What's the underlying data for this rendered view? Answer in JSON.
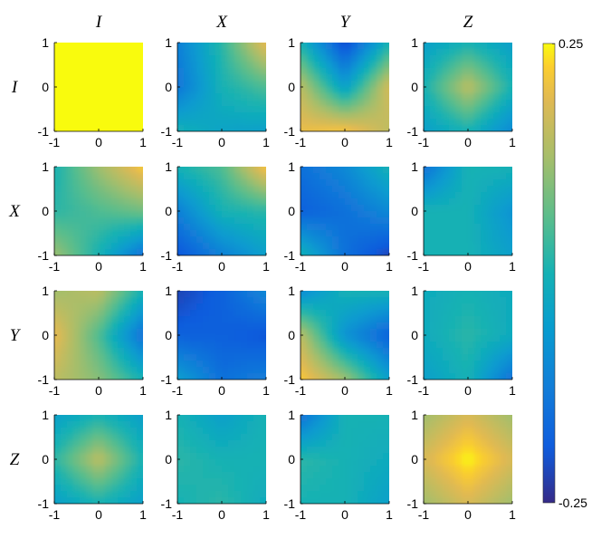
{
  "chart_data": {
    "type": "heatmap",
    "layout": "4x4 grid of subplots",
    "colormap": "parula",
    "column_labels": [
      "I",
      "X",
      "Y",
      "Z"
    ],
    "row_labels": [
      "I",
      "X",
      "Y",
      "Z"
    ],
    "axis_range": {
      "x": [
        -1,
        1
      ],
      "y": [
        -1,
        1
      ]
    },
    "x_ticks": [
      "-1",
      "0",
      "1"
    ],
    "y_ticks": [
      "1",
      "0",
      "-1"
    ],
    "colorbar": {
      "min": -0.25,
      "max": 0.25,
      "min_label": "-0.25",
      "max_label": "0.25"
    },
    "grid": false,
    "panels": [
      {
        "row": "I",
        "col": "I",
        "approx_field": [
          [
            0.25,
            0.25,
            0.25
          ],
          [
            0.25,
            0.25,
            0.25
          ],
          [
            0.25,
            0.25,
            0.25
          ]
        ]
      },
      {
        "row": "I",
        "col": "X",
        "approx_field": [
          [
            -0.12,
            0.02,
            0.2
          ],
          [
            -0.14,
            0.0,
            0.05
          ],
          [
            0.0,
            -0.04,
            -0.05
          ]
        ]
      },
      {
        "row": "I",
        "col": "Y",
        "approx_field": [
          [
            0.0,
            -0.22,
            0.0
          ],
          [
            0.15,
            -0.05,
            0.18
          ],
          [
            0.2,
            0.22,
            0.15
          ]
        ]
      },
      {
        "row": "I",
        "col": "Z",
        "approx_field": [
          [
            -0.05,
            0.0,
            -0.05
          ],
          [
            0.0,
            0.15,
            0.0
          ],
          [
            -0.05,
            0.0,
            -0.1
          ]
        ]
      },
      {
        "row": "X",
        "col": "I",
        "approx_field": [
          [
            0.0,
            0.12,
            0.22
          ],
          [
            0.02,
            0.05,
            0.08
          ],
          [
            0.12,
            0.0,
            -0.15
          ]
        ]
      },
      {
        "row": "X",
        "col": "X",
        "approx_field": [
          [
            0.0,
            0.05,
            0.22
          ],
          [
            -0.12,
            0.0,
            0.02
          ],
          [
            -0.2,
            -0.12,
            -0.05
          ]
        ]
      },
      {
        "row": "X",
        "col": "Y",
        "approx_field": [
          [
            -0.15,
            -0.1,
            0.0
          ],
          [
            -0.18,
            -0.15,
            -0.1
          ],
          [
            0.0,
            -0.15,
            -0.22
          ]
        ]
      },
      {
        "row": "X",
        "col": "Z",
        "approx_field": [
          [
            -0.15,
            0.0,
            0.0
          ],
          [
            0.0,
            0.0,
            -0.08
          ],
          [
            0.0,
            0.0,
            -0.05
          ]
        ]
      },
      {
        "row": "Y",
        "col": "I",
        "approx_field": [
          [
            0.12,
            0.15,
            0.0
          ],
          [
            0.2,
            0.05,
            -0.15
          ],
          [
            0.15,
            0.1,
            0.0
          ]
        ]
      },
      {
        "row": "Y",
        "col": "X",
        "approx_field": [
          [
            -0.22,
            -0.18,
            -0.1
          ],
          [
            -0.18,
            -0.18,
            -0.2
          ],
          [
            -0.05,
            -0.15,
            -0.12
          ]
        ]
      },
      {
        "row": "Y",
        "col": "Y",
        "approx_field": [
          [
            -0.1,
            0.0,
            0.0
          ],
          [
            0.15,
            -0.08,
            -0.18
          ],
          [
            0.22,
            0.12,
            -0.05
          ]
        ]
      },
      {
        "row": "Y",
        "col": "Z",
        "approx_field": [
          [
            -0.02,
            0.0,
            -0.02
          ],
          [
            -0.02,
            0.02,
            -0.02
          ],
          [
            -0.05,
            0.0,
            -0.15
          ]
        ]
      },
      {
        "row": "Z",
        "col": "I",
        "approx_field": [
          [
            -0.05,
            0.0,
            -0.05
          ],
          [
            0.02,
            0.15,
            0.0
          ],
          [
            -0.05,
            0.0,
            -0.05
          ]
        ]
      },
      {
        "row": "Z",
        "col": "X",
        "approx_field": [
          [
            0.0,
            -0.05,
            0.0
          ],
          [
            0.02,
            0.0,
            0.0
          ],
          [
            0.0,
            0.02,
            -0.02
          ]
        ]
      },
      {
        "row": "Z",
        "col": "Y",
        "approx_field": [
          [
            -0.15,
            0.0,
            0.0
          ],
          [
            0.02,
            0.0,
            -0.02
          ],
          [
            0.0,
            0.0,
            -0.05
          ]
        ]
      },
      {
        "row": "Z",
        "col": "Z",
        "approx_field": [
          [
            0.12,
            0.18,
            0.12
          ],
          [
            0.18,
            0.25,
            0.18
          ],
          [
            0.12,
            0.18,
            0.12
          ]
        ]
      }
    ]
  }
}
